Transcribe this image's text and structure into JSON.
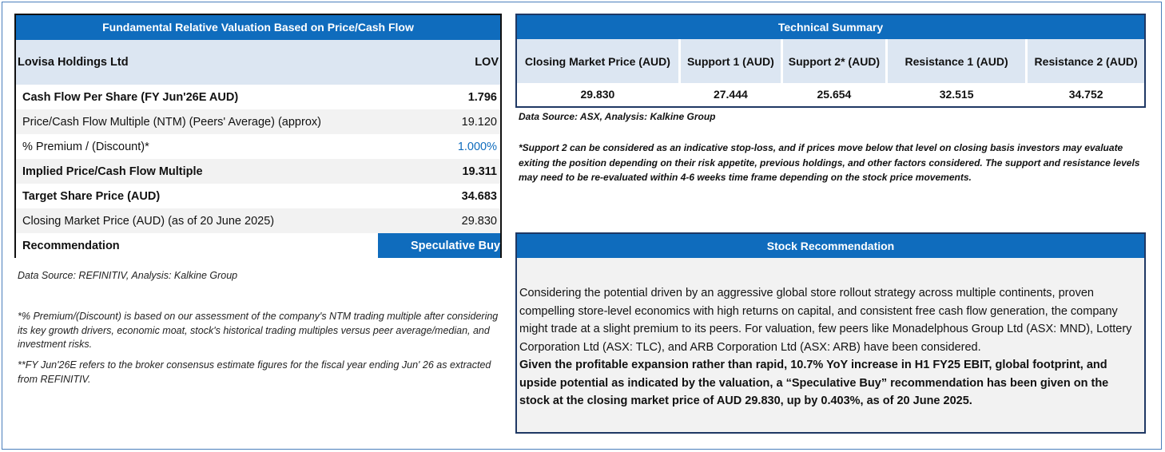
{
  "valuation": {
    "title": "Fundamental Relative Valuation Based on Price/Cash Flow",
    "company": "Lovisa Holdings Ltd",
    "ticker": "LOV",
    "rows": [
      {
        "label": "Cash Flow Per Share (FY Jun'26E AUD)",
        "value": "1.796"
      },
      {
        "label": "Price/Cash Flow Multiple (NTM) (Peers' Average) (approx)",
        "value": "19.120"
      },
      {
        "label": "% Premium / (Discount)*",
        "value": "1.000%"
      },
      {
        "label": "Implied Price/Cash Flow Multiple",
        "value": "19.311"
      },
      {
        "label": "Target Share Price (AUD)",
        "value": "34.683"
      },
      {
        "label": "Closing Market Price (AUD) (as of 20 June 2025)",
        "value": "29.830"
      },
      {
        "label": "Recommendation",
        "value": "Speculative Buy"
      }
    ],
    "source": "Data Source: REFINITIV, Analysis: Kalkine Group",
    "footnote1": "*% Premium/(Discount) is based on our assessment of the company's NTM trading multiple after considering its key growth drivers, economic moat, stock's historical trading multiples versus peer average/median, and investment risks.",
    "footnote2": "**FY Jun'26E refers to the broker consensus estimate figures for the fiscal year ending Jun' 26 as extracted from REFINITIV."
  },
  "technical": {
    "title": "Technical Summary",
    "columns": [
      {
        "header": "Closing Market Price (AUD)",
        "value": "29.830"
      },
      {
        "header": "Support 1 (AUD)",
        "value": "27.444"
      },
      {
        "header": "Support 2* (AUD)",
        "value": "25.654"
      },
      {
        "header": "Resistance 1 (AUD)",
        "value": "32.515"
      },
      {
        "header": "Resistance 2 (AUD)",
        "value": "34.752"
      }
    ],
    "source": "Data Source: ASX, Analysis: Kalkine Group",
    "footnote": "*Support 2 can be considered as an indicative stop-loss, and if prices move below that level on closing basis investors may evaluate exiting the position depending on their risk appetite, previous holdings, and other factors considered. The support and resistance levels may need to be re-evaluated within 4-6 weeks time frame depending on the stock price movements."
  },
  "stock": {
    "title": "Stock Recommendation",
    "para1": "Considering the potential driven by an aggressive global store rollout strategy across multiple continents, proven compelling store-level economics with high returns on capital, and consistent free cash flow generation, the company might trade at a slight premium to its peers. For valuation, few peers like Monadelphous Group Ltd (ASX: MND), Lottery Corporation Ltd (ASX: TLC), and ARB Corporation Ltd (ASX: ARB) have been considered.",
    "para2": "Given the profitable expansion rather than rapid, 10.7% YoY increase in H1 FY25 EBIT, global footprint, and upside potential as indicated by the valuation, a “Speculative Buy” recommendation has been given on the stock at the closing market price of AUD 29.830, up by 0.403%, as of 20 June 2025."
  },
  "colors": {
    "header_blue": "#0f6cbd",
    "light_blue": "#dce6f2",
    "grey": "#f2f2f2",
    "border_navy": "#1f3864"
  }
}
